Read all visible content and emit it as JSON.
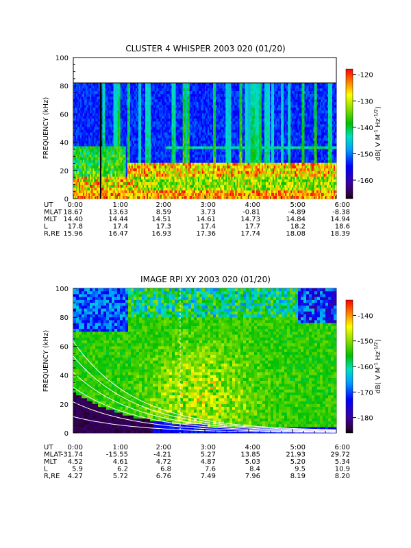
{
  "chart_data": [
    {
      "type": "heatmap",
      "title": "CLUSTER 4 WHISPER 2003 020 (01/20)",
      "ylabel": "FREQUENCY (kHz)",
      "ylim": [
        0,
        100
      ],
      "yticks": [
        "0",
        "20",
        "40",
        "60",
        "80",
        "100"
      ],
      "colorbar": {
        "label": "dB( V M",
        "label_sup1": "-1",
        "label_mid": " Hz",
        "label_sup2": "-1/2",
        "label_end": ")",
        "range": [
          -167,
          -118
        ],
        "ticks": [
          "-120",
          "-130",
          "-140",
          "-150",
          "-160"
        ]
      },
      "ephemeris": {
        "row_labels": [
          "UT",
          "MLAT",
          "MLT",
          "L",
          "R,RE"
        ],
        "columns": [
          [
            "0:00",
            "18.67",
            "14.40",
            "17.8",
            "15.96"
          ],
          [
            "1:00",
            "13.63",
            "14.44",
            "17.4",
            "16.47"
          ],
          [
            "2:00",
            "8.59",
            "14.51",
            "17.3",
            "16.93"
          ],
          [
            "3:00",
            "3.73",
            "14.61",
            "17.4",
            "17.36"
          ],
          [
            "4:00",
            "-0.81",
            "14.73",
            "17.7",
            "17.74"
          ],
          [
            "5:00",
            "-4.89",
            "14.84",
            "18.2",
            "18.08"
          ],
          [
            "6:00",
            "-8.38",
            "14.94",
            "18.6",
            "18.39"
          ]
        ]
      }
    },
    {
      "type": "heatmap",
      "title": "IMAGE RPI XY 2003 020 (01/20)",
      "ylabel": "FREQUENCY (kHz)",
      "ylim": [
        0,
        100
      ],
      "yticks": [
        "0",
        "20",
        "40",
        "60",
        "80",
        "100"
      ],
      "colorbar": {
        "label": "dB( V M",
        "label_sup1": "-1",
        "label_mid": " Hz",
        "label_sup2": "-1/2",
        "label_end": ")",
        "range": [
          -186,
          -134
        ],
        "ticks": [
          "-140",
          "-150",
          "-160",
          "-170",
          "-180"
        ]
      },
      "ephemeris": {
        "row_labels": [
          "UT",
          "MLAT",
          "MLT",
          "L",
          "R,RE"
        ],
        "columns": [
          [
            "0:00",
            "-31.74",
            "4.52",
            "5.9",
            "4.27"
          ],
          [
            "1:00",
            "-15.55",
            "4.61",
            "6.2",
            "5.72"
          ],
          [
            "2:00",
            "-4.21",
            "4.72",
            "6.8",
            "6.76"
          ],
          [
            "3:00",
            "5.27",
            "4.87",
            "7.6",
            "7.49"
          ],
          [
            "4:00",
            "13.85",
            "5.03",
            "8.4",
            "7.96"
          ],
          [
            "5:00",
            "21.93",
            "5.20",
            "9.5",
            "8.19"
          ],
          [
            "6:00",
            "29.72",
            "5.34",
            "10.9",
            "8.20"
          ]
        ]
      }
    }
  ]
}
